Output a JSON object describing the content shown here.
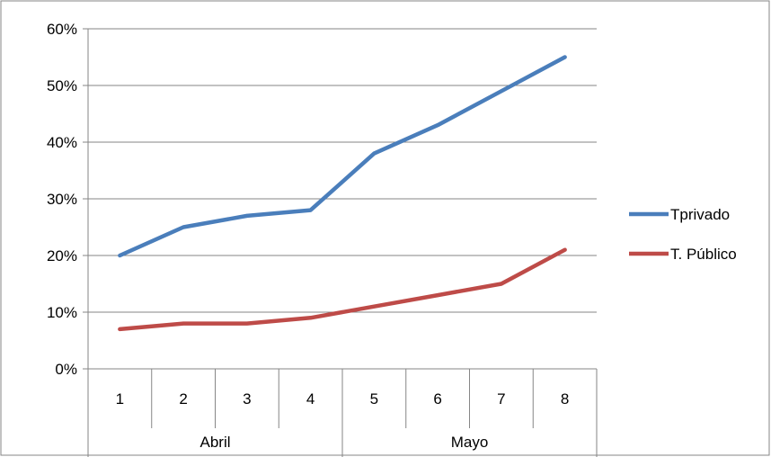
{
  "chart_data": {
    "type": "line",
    "title": "",
    "xlabel": "",
    "ylabel": "",
    "categories": [
      "1",
      "2",
      "3",
      "4",
      "5",
      "6",
      "7",
      "8"
    ],
    "category_groups": [
      {
        "label": "Abril",
        "categories": [
          "1",
          "2",
          "3",
          "4"
        ]
      },
      {
        "label": "Mayo",
        "categories": [
          "5",
          "6",
          "7",
          "8"
        ]
      }
    ],
    "y_ticks": [
      "0%",
      "10%",
      "20%",
      "30%",
      "40%",
      "50%",
      "60%"
    ],
    "ylim": [
      0,
      0.6
    ],
    "grid": true,
    "legend_position": "right",
    "series": [
      {
        "name": "Tprivado",
        "color": "#4a7ebb",
        "values": [
          0.2,
          0.25,
          0.27,
          0.28,
          0.38,
          0.43,
          0.49,
          0.55
        ]
      },
      {
        "name": "T. Público",
        "color": "#be4b48",
        "values": [
          0.07,
          0.08,
          0.08,
          0.09,
          0.11,
          0.13,
          0.15,
          0.21
        ]
      }
    ]
  }
}
